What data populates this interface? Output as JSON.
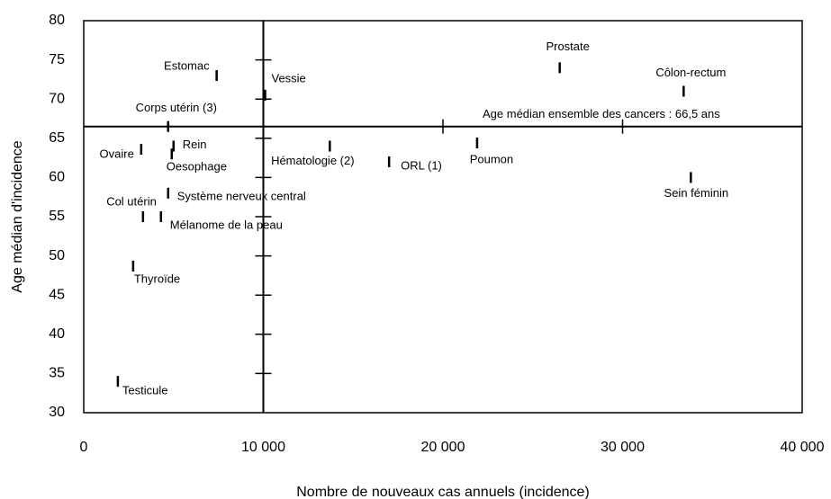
{
  "chart_data": {
    "type": "scatter",
    "xlabel": "Nombre de nouveaux cas annuels (incidence)",
    "ylabel": "Age médian d'incidence",
    "xlim": [
      0,
      40000
    ],
    "xticks": [
      0,
      {
        "value": 10000,
        "label": "10 000"
      },
      {
        "value": 20000,
        "label": "20 000"
      },
      {
        "value": 30000,
        "label": "30 000"
      },
      {
        "value": 40000,
        "label": "40 000"
      }
    ],
    "ylim": [
      30,
      80
    ],
    "yticks": [
      30,
      35,
      40,
      45,
      50,
      55,
      60,
      65,
      70,
      75,
      80
    ],
    "vline": 10000,
    "hline": 66.5,
    "annotation": "Age médian ensemble des cancers : 66,5 ans",
    "color": "#000000",
    "points": [
      {
        "name": "Estomac",
        "x": 7400,
        "y": 73
      },
      {
        "name": "Vessie",
        "x": 10100,
        "y": 70.5
      },
      {
        "name": "Prostate",
        "x": 26500,
        "y": 74
      },
      {
        "name": "Côlon-rectum",
        "x": 33400,
        "y": 71
      },
      {
        "name": "Corps utérin (3)",
        "x": 4700,
        "y": 66.5
      },
      {
        "name": "Ovaire",
        "x": 3200,
        "y": 63.6
      },
      {
        "name": "Rein",
        "x": 5000,
        "y": 64
      },
      {
        "name": "Oesophage",
        "x": 4900,
        "y": 63
      },
      {
        "name": "Hématologie (2)",
        "x": 13700,
        "y": 64
      },
      {
        "name": "ORL (1)",
        "x": 17000,
        "y": 62
      },
      {
        "name": "Poumon",
        "x": 21900,
        "y": 64.4
      },
      {
        "name": "Sein féminin",
        "x": 33800,
        "y": 60
      },
      {
        "name": "Système nerveux central",
        "x": 4700,
        "y": 58
      },
      {
        "name": "Col utérin",
        "x": 3300,
        "y": 55
      },
      {
        "name": "Mélanome de la peau",
        "x": 4300,
        "y": 55
      },
      {
        "name": "Thyroïde",
        "x": 2750,
        "y": 48.7
      },
      {
        "name": "Testicule",
        "x": 1900,
        "y": 34
      }
    ]
  }
}
